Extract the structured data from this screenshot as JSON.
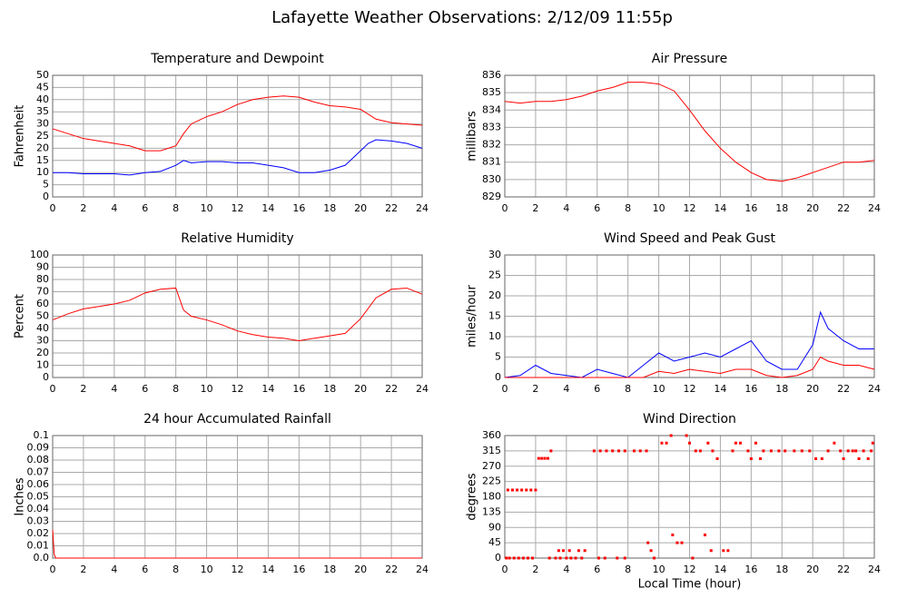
{
  "title": "Lafayette Weather Observations: 2/12/09 11:55p",
  "chart_data": [
    {
      "type": "line",
      "title": "Temperature and Dewpoint",
      "ylabel": "Fahrenheit",
      "x": [
        0,
        1,
        2,
        3,
        4,
        5,
        6,
        7,
        8,
        8.5,
        9,
        10,
        11,
        12,
        13,
        14,
        15,
        16,
        17,
        18,
        19,
        20,
        20.5,
        21,
        22,
        23,
        24
      ],
      "series": [
        {
          "color": "#ff0000",
          "values": [
            28,
            26,
            24,
            23,
            22,
            21,
            19,
            19,
            21,
            26,
            30,
            33,
            35,
            38,
            40,
            41,
            41.5,
            41,
            39,
            37.5,
            37,
            36,
            34,
            32,
            30.5,
            30,
            29.5
          ]
        },
        {
          "color": "#0000ff",
          "values": [
            10,
            10,
            9.5,
            9.5,
            9.5,
            9,
            10,
            10.5,
            13,
            15,
            14,
            14.5,
            14.5,
            14,
            14,
            13,
            12,
            10,
            10,
            11,
            13,
            19,
            22,
            23.5,
            23,
            22,
            20
          ]
        }
      ],
      "xlim": [
        0,
        24
      ],
      "xticks": [
        0,
        2,
        4,
        6,
        8,
        10,
        12,
        14,
        16,
        18,
        20,
        22,
        24
      ],
      "ylim": [
        0,
        50
      ],
      "yticks": [
        0,
        5,
        10,
        15,
        20,
        25,
        30,
        35,
        40,
        45,
        50
      ],
      "grid": true
    },
    {
      "type": "line",
      "title": "Air Pressure",
      "ylabel": "millibars",
      "x": [
        0,
        1,
        2,
        3,
        4,
        5,
        6,
        7,
        8,
        9,
        10,
        11,
        12,
        13,
        14,
        15,
        16,
        17,
        18,
        19,
        20,
        21,
        22,
        23,
        24
      ],
      "series": [
        {
          "color": "#ff0000",
          "values": [
            834.5,
            834.4,
            834.5,
            834.5,
            834.6,
            834.8,
            835.1,
            835.3,
            835.6,
            835.6,
            835.5,
            835.1,
            834,
            832.8,
            831.8,
            831,
            830.4,
            830,
            829.9,
            830.1,
            830.4,
            830.7,
            831,
            831,
            831.1
          ]
        }
      ],
      "xlim": [
        0,
        24
      ],
      "xticks": [
        0,
        2,
        4,
        6,
        8,
        10,
        12,
        14,
        16,
        18,
        20,
        22,
        24
      ],
      "ylim": [
        829,
        836
      ],
      "yticks": [
        829,
        830,
        831,
        832,
        833,
        834,
        835,
        836
      ],
      "grid": true
    },
    {
      "type": "line",
      "title": "Relative Humidity",
      "ylabel": "Percent",
      "x": [
        0,
        1,
        2,
        3,
        4,
        5,
        6,
        7,
        8,
        8.5,
        9,
        10,
        11,
        12,
        13,
        14,
        15,
        16,
        17,
        18,
        19,
        20,
        21,
        22,
        23,
        24
      ],
      "series": [
        {
          "color": "#ff0000",
          "values": [
            47,
            52,
            56,
            58,
            60,
            63,
            69,
            72,
            73,
            55,
            50,
            47,
            43,
            38,
            35,
            33,
            32,
            30,
            32,
            34,
            36,
            48,
            65,
            72,
            73,
            68
          ]
        }
      ],
      "xlim": [
        0,
        24
      ],
      "xticks": [
        0,
        2,
        4,
        6,
        8,
        10,
        12,
        14,
        16,
        18,
        20,
        22,
        24
      ],
      "ylim": [
        0,
        100
      ],
      "yticks": [
        0,
        10,
        20,
        30,
        40,
        50,
        60,
        70,
        80,
        90,
        100
      ],
      "grid": true
    },
    {
      "type": "line",
      "title": "Wind Speed and Peak Gust",
      "ylabel": "miles/hour",
      "x": [
        0,
        1,
        2,
        3,
        4,
        5,
        6,
        7,
        8,
        9,
        10,
        11,
        12,
        13,
        14,
        15,
        16,
        17,
        18,
        19,
        20,
        20.5,
        21,
        22,
        23,
        24
      ],
      "series": [
        {
          "color": "#0000ff",
          "values": [
            0,
            0.5,
            3,
            1,
            0.5,
            0,
            2,
            1,
            0,
            3,
            6,
            4,
            5,
            6,
            5,
            7,
            9,
            4,
            2,
            2,
            8,
            16,
            12,
            9,
            7,
            7
          ]
        },
        {
          "color": "#ff0000",
          "values": [
            0,
            0,
            0,
            0,
            0,
            0,
            0,
            0,
            0,
            0,
            1.5,
            1,
            2,
            1.5,
            1,
            2,
            2,
            0.5,
            0,
            0.5,
            2,
            5,
            4,
            3,
            3,
            2
          ]
        }
      ],
      "xlim": [
        0,
        24
      ],
      "xticks": [
        0,
        2,
        4,
        6,
        8,
        10,
        12,
        14,
        16,
        18,
        20,
        22,
        24
      ],
      "ylim": [
        0,
        30
      ],
      "yticks": [
        0,
        5,
        10,
        15,
        20,
        25,
        30
      ],
      "grid": true
    },
    {
      "type": "line",
      "title": "24 hour Accumulated Rainfall",
      "ylabel": "Inches",
      "x": [
        0,
        0.1,
        0.2,
        24
      ],
      "series": [
        {
          "color": "#ff0000",
          "values": [
            0.023,
            0.003,
            0,
            0
          ]
        }
      ],
      "xlim": [
        0,
        24
      ],
      "xticks": [
        0,
        2,
        4,
        6,
        8,
        10,
        12,
        14,
        16,
        18,
        20,
        22,
        24
      ],
      "ylim": [
        0,
        0.1
      ],
      "yticks": [
        {
          "value": 0,
          "label": "0.0"
        },
        0.01,
        0.02,
        0.03,
        0.04,
        0.05,
        0.06,
        0.07,
        0.08,
        0.09,
        0.1
      ],
      "grid": true
    },
    {
      "type": "scatter",
      "title": "Wind Direction",
      "ylabel": "degrees",
      "xlabel": "Local Time (hour)",
      "x": [
        0.1,
        0.3,
        0.6,
        0.9,
        1.2,
        1.5,
        1.8,
        0.2,
        0.5,
        0.8,
        1.1,
        1.4,
        1.7,
        2.0,
        2.2,
        2.4,
        2.6,
        2.8,
        3.0,
        2.9,
        3.3,
        3.6,
        4.0,
        4.3,
        4.6,
        5.0,
        3.5,
        3.8,
        4.2,
        4.8,
        5.2,
        5.8,
        6.2,
        6.6,
        7.0,
        7.4,
        7.8,
        6.1,
        6.5,
        7.3,
        7.8,
        8.4,
        8.8,
        9.2,
        9.3,
        9.5,
        9.7,
        10.2,
        10.5,
        10.8,
        10.9,
        11.2,
        11.5,
        11.8,
        12.0,
        12.4,
        12.7,
        13.2,
        13.5,
        13.8,
        12.2,
        13.0,
        13.4,
        14.2,
        14.5,
        14.8,
        15.3,
        15.8,
        16.3,
        16.8,
        17.3,
        17.8,
        15.0,
        16.0,
        16.6,
        18.2,
        18.8,
        19.3,
        19.8,
        20.2,
        20.6,
        21.0,
        21.4,
        21.8,
        22.3,
        22.8,
        23.3,
        23.8,
        22.0,
        22.6,
        23.0,
        23.6,
        23.9
      ],
      "series": [
        {
          "color": "#ff0000",
          "values": [
            0,
            0,
            0,
            0,
            0,
            0,
            0,
            200,
            200,
            200,
            200,
            200,
            200,
            200,
            293,
            293,
            293,
            293,
            315,
            0,
            0,
            0,
            0,
            0,
            0,
            0,
            22,
            22,
            22,
            22,
            22,
            315,
            315,
            315,
            315,
            315,
            315,
            0,
            0,
            0,
            0,
            315,
            315,
            315,
            45,
            22,
            0,
            338,
            338,
            360,
            68,
            45,
            45,
            360,
            338,
            315,
            315,
            338,
            315,
            292,
            0,
            68,
            22,
            22,
            22,
            315,
            338,
            315,
            338,
            315,
            315,
            315,
            338,
            292,
            292,
            315,
            315,
            315,
            315,
            292,
            292,
            315,
            338,
            315,
            315,
            315,
            315,
            315,
            292,
            315,
            292,
            292,
            338
          ]
        }
      ],
      "xlim": [
        0,
        24
      ],
      "xticks": [
        0,
        2,
        4,
        6,
        8,
        10,
        12,
        14,
        16,
        18,
        20,
        22,
        24
      ],
      "ylim": [
        0,
        360
      ],
      "yticks": [
        0,
        45,
        90,
        135,
        180,
        225,
        270,
        315,
        360
      ],
      "grid": true
    }
  ]
}
